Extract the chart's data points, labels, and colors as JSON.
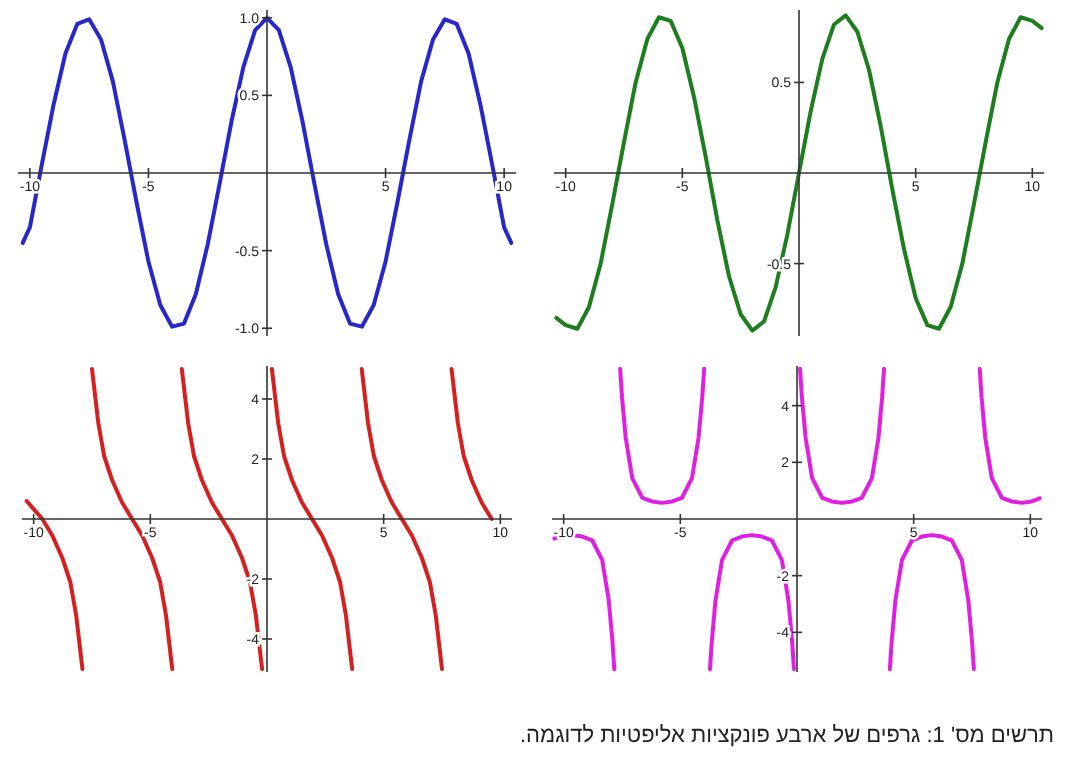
{
  "chart_data": [
    {
      "type": "line",
      "xlim": [
        -10.5,
        10.5
      ],
      "ylim": [
        -1.05,
        1.05
      ],
      "xticks": [
        -10,
        -5,
        5,
        10
      ],
      "yticks": [
        {
          "value": -1,
          "label": "-1.0"
        },
        -0.5,
        0.5,
        {
          "value": 1,
          "label": "1.0"
        }
      ],
      "series": [
        {
          "color": "#2828c8",
          "x": [
            -10.3,
            -10,
            -9.5,
            -9,
            -8.5,
            -8,
            -7.5,
            -7,
            -6.5,
            -6,
            -5.5,
            -5,
            -4.5,
            -4,
            -3.5,
            -3,
            -2.5,
            -2,
            -1.5,
            -1,
            -0.5,
            0,
            0.5,
            1,
            1.5,
            2,
            2.5,
            3,
            3.5,
            4,
            4.5,
            5,
            5.5,
            6,
            6.5,
            7,
            7.5,
            8,
            8.5,
            9,
            9.5,
            10,
            10.3
          ],
          "values": [
            -0.45,
            -0.35,
            0.05,
            0.44,
            0.77,
            0.96,
            0.99,
            0.86,
            0.59,
            0.21,
            -0.19,
            -0.57,
            -0.85,
            -0.99,
            -0.97,
            -0.78,
            -0.46,
            -0.07,
            0.33,
            0.68,
            0.92,
            1,
            0.92,
            0.68,
            0.33,
            -0.07,
            -0.46,
            -0.78,
            -0.97,
            -0.99,
            -0.85,
            -0.57,
            -0.19,
            0.21,
            0.59,
            0.86,
            0.99,
            0.96,
            0.77,
            0.44,
            0.05,
            -0.35,
            -0.45
          ]
        }
      ]
    },
    {
      "type": "line",
      "xlim": [
        -10.5,
        10.5
      ],
      "ylim": [
        -0.9,
        0.9
      ],
      "xticks": [
        -10,
        -5,
        5,
        10
      ],
      "yticks": [
        -0.5,
        0.5
      ],
      "series": [
        {
          "color": "#1e7d1e",
          "x": [
            -10.4,
            -10,
            -9.5,
            -9,
            -8.5,
            -8,
            -7.5,
            -7,
            -6.5,
            -6,
            -5.5,
            -5,
            -4.5,
            -4,
            -3.5,
            -3,
            -2.5,
            -2,
            -1.5,
            -1,
            -0.5,
            0,
            0.5,
            1,
            1.5,
            2,
            2.5,
            3,
            3.5,
            4,
            4.5,
            5,
            5.5,
            6,
            6.5,
            7,
            7.5,
            8,
            8.5,
            9,
            9.5,
            10,
            10.4
          ],
          "values": [
            -0.8,
            -0.84,
            -0.86,
            -0.74,
            -0.5,
            -0.17,
            0.17,
            0.5,
            0.74,
            0.86,
            0.84,
            0.69,
            0.42,
            0.09,
            -0.26,
            -0.57,
            -0.78,
            -0.87,
            -0.82,
            -0.63,
            -0.34,
            0,
            0.34,
            0.63,
            0.82,
            0.87,
            0.78,
            0.57,
            0.26,
            -0.09,
            -0.42,
            -0.69,
            -0.84,
            -0.86,
            -0.74,
            -0.5,
            -0.17,
            0.17,
            0.5,
            0.74,
            0.86,
            0.84,
            0.8
          ]
        }
      ]
    },
    {
      "type": "line",
      "xlim": [
        -10.5,
        10.5
      ],
      "ylim": [
        -5.1,
        5.1
      ],
      "xticks": [
        -10,
        -5,
        5,
        10
      ],
      "yticks": [
        -4,
        -2,
        2,
        4
      ],
      "series": [
        {
          "color": "#d42020",
          "x": [
            -10.3,
            -9.63,
            -9.2,
            -8.77,
            -8.43,
            -8.18,
            -8.03,
            -7.91
          ],
          "values": [
            0.6,
            0,
            -0.55,
            -1.3,
            -2.1,
            -3.2,
            -4.2,
            -5
          ]
        },
        {
          "color": "#d42020",
          "x": [
            -7.5,
            -7.38,
            -7.23,
            -6.98,
            -6.64,
            -6.21,
            -5.78,
            -5.35,
            -4.92,
            -4.58,
            -4.33,
            -4.18,
            -4.06
          ],
          "values": [
            5,
            4.2,
            3.2,
            2.1,
            1.3,
            0.55,
            0,
            -0.55,
            -1.3,
            -2.1,
            -3.2,
            -4.2,
            -5
          ]
        },
        {
          "color": "#d42020",
          "x": [
            -3.65,
            -3.53,
            -3.38,
            -3.13,
            -2.79,
            -2.36,
            -1.93,
            -1.5,
            -1.07,
            -0.73,
            -0.48,
            -0.33,
            -0.21
          ],
          "values": [
            5,
            4.2,
            3.2,
            2.1,
            1.3,
            0.55,
            0,
            -0.55,
            -1.3,
            -2.1,
            -3.2,
            -4.2,
            -5
          ]
        },
        {
          "color": "#d42020",
          "x": [
            0.21,
            0.33,
            0.48,
            0.73,
            1.07,
            1.5,
            1.93,
            2.36,
            2.79,
            3.13,
            3.38,
            3.53,
            3.65
          ],
          "values": [
            5,
            4.2,
            3.2,
            2.1,
            1.3,
            0.55,
            0,
            -0.55,
            -1.3,
            -2.1,
            -3.2,
            -4.2,
            -5
          ]
        },
        {
          "color": "#d42020",
          "x": [
            4.06,
            4.18,
            4.33,
            4.58,
            4.92,
            5.35,
            5.78,
            6.21,
            6.64,
            6.98,
            7.23,
            7.38,
            7.5
          ],
          "values": [
            5,
            4.2,
            3.2,
            2.1,
            1.3,
            0.55,
            0,
            -0.55,
            -1.3,
            -2.1,
            -3.2,
            -4.2,
            -5
          ]
        },
        {
          "color": "#d42020",
          "x": [
            7.91,
            8.03,
            8.18,
            8.43,
            8.77,
            9.2,
            9.63
          ],
          "values": [
            5,
            4.2,
            3.2,
            2.1,
            1.3,
            0.55,
            0
          ]
        }
      ]
    },
    {
      "type": "line",
      "xlim": [
        -10.5,
        10.5
      ],
      "ylim": [
        -5.4,
        5.4
      ],
      "xticks": [
        -10,
        -5,
        5,
        10
      ],
      "yticks": [
        -4,
        -2,
        2,
        4
      ],
      "series": [
        {
          "color": "#e020e0",
          "x": [
            -10.4,
            -10.06,
            -9.63,
            -9.2,
            -8.78,
            -8.35,
            -8.07,
            -7.91,
            -7.83
          ],
          "values": [
            -0.69,
            -0.62,
            -0.57,
            -0.62,
            -0.75,
            -1.44,
            -2.86,
            -4.3,
            -5.3
          ]
        },
        {
          "color": "#e020e0",
          "x": [
            -7.58,
            -7.5,
            -7.34,
            -7.06,
            -6.63,
            -6.21,
            -5.78,
            -5.35,
            -4.93,
            -4.5,
            -4.22,
            -4.06,
            -3.98
          ],
          "values": [
            5.3,
            4.3,
            2.86,
            1.44,
            0.75,
            0.62,
            0.57,
            0.62,
            0.75,
            1.44,
            2.86,
            4.3,
            5.3
          ]
        },
        {
          "color": "#e020e0",
          "x": [
            -3.73,
            -3.65,
            -3.49,
            -3.21,
            -2.78,
            -2.36,
            -1.93,
            -1.5,
            -1.08,
            -0.65,
            -0.37,
            -0.21,
            -0.13
          ],
          "values": [
            -5.3,
            -4.3,
            -2.86,
            -1.44,
            -0.75,
            -0.62,
            -0.57,
            -0.62,
            -0.75,
            -1.44,
            -2.86,
            -4.3,
            -5.3
          ]
        },
        {
          "color": "#e020e0",
          "x": [
            0.13,
            0.21,
            0.37,
            0.65,
            1.08,
            1.5,
            1.93,
            2.36,
            2.78,
            3.21,
            3.49,
            3.65,
            3.73
          ],
          "values": [
            5.3,
            4.3,
            2.86,
            1.44,
            0.75,
            0.62,
            0.57,
            0.62,
            0.75,
            1.44,
            2.86,
            4.3,
            5.3
          ]
        },
        {
          "color": "#e020e0",
          "x": [
            3.98,
            4.06,
            4.22,
            4.5,
            4.93,
            5.35,
            5.78,
            6.21,
            6.63,
            7.06,
            7.34,
            7.5,
            7.58
          ],
          "values": [
            -5.3,
            -4.3,
            -2.86,
            -1.44,
            -0.75,
            -0.62,
            -0.57,
            -0.62,
            -0.75,
            -1.44,
            -2.86,
            -4.3,
            -5.3
          ]
        },
        {
          "color": "#e020e0",
          "x": [
            7.83,
            7.91,
            8.07,
            8.35,
            8.78,
            9.2,
            9.63,
            10.06,
            10.4
          ],
          "values": [
            5.3,
            4.3,
            2.86,
            1.44,
            0.75,
            0.62,
            0.57,
            0.62,
            0.73
          ]
        }
      ],
      "annotations": [
        "תרשים מס' 1: גרפים של ארבע פונקציות אליפטיות לדוגמה."
      ]
    }
  ]
}
